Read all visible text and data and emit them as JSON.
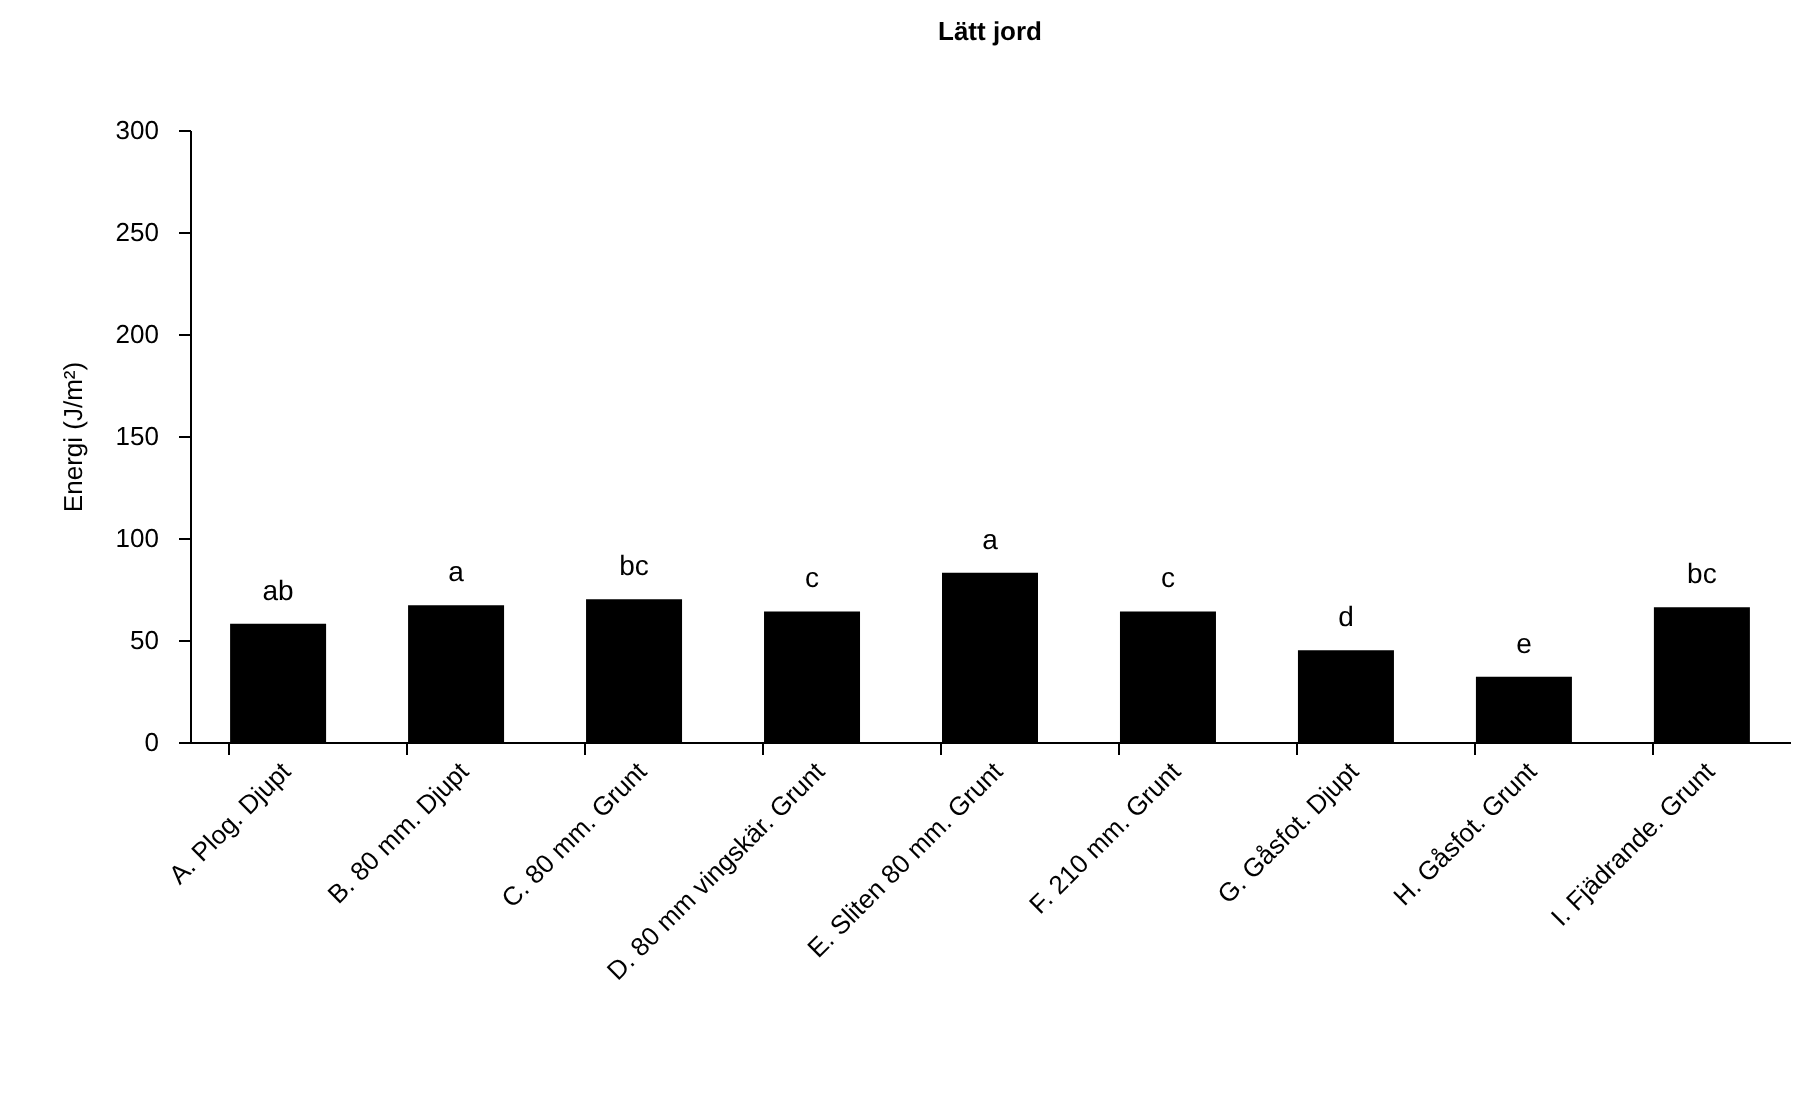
{
  "chart_data": {
    "type": "bar",
    "title": "Lätt jord",
    "ylabel": "Energi (J/m²)",
    "categories": [
      "A. Plog. Djupt",
      "B. 80 mm. Djupt",
      "C. 80 mm. Grunt",
      "D. 80 mm vingskär. Grunt",
      "E. Sliten 80 mm. Grunt",
      "F. 210 mm. Grunt",
      "G. Gåsfot. Djupt",
      "H. Gåsfot. Grunt",
      "I. Fjädrande. Grunt"
    ],
    "values": [
      58,
      67,
      70,
      64,
      83,
      64,
      45,
      32,
      66
    ],
    "color": "#000000",
    "ylim": [
      0,
      300
    ],
    "yticks": [
      0,
      50,
      100,
      150,
      200,
      250,
      300
    ],
    "grid": false,
    "annotations": [
      {
        "text": "ab",
        "x": "A. Plog. Djupt",
        "y": 58
      },
      {
        "text": "a",
        "x": "B. 80 mm. Djupt",
        "y": 67
      },
      {
        "text": "bc",
        "x": "C. 80 mm. Grunt",
        "y": 70
      },
      {
        "text": "c",
        "x": "D. 80 mm vingskär. Grunt",
        "y": 64
      },
      {
        "text": "a",
        "x": "E. Sliten 80 mm. Grunt",
        "y": 83
      },
      {
        "text": "c",
        "x": "F. 210 mm. Grunt",
        "y": 64
      },
      {
        "text": "d",
        "x": "G. Gåsfot. Djupt",
        "y": 45
      },
      {
        "text": "e",
        "x": "H. Gåsfot. Grunt",
        "y": 32
      },
      {
        "text": "bc",
        "x": "I. Fjädrande. Grunt",
        "y": 66
      }
    ]
  }
}
